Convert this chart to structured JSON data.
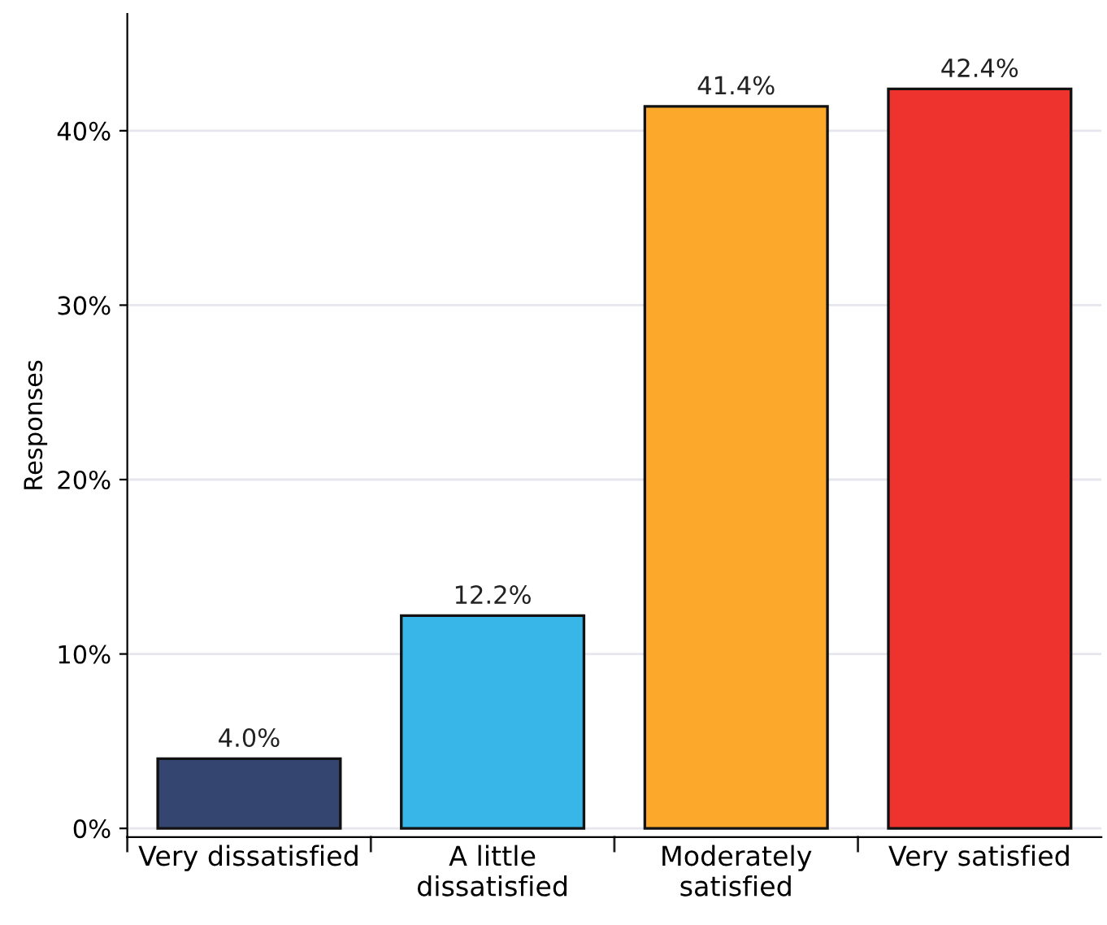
{
  "chart_data": {
    "type": "bar",
    "ylabel": "Responses",
    "categories": [
      "Very dissatisfied",
      "A little\ndissatisfied",
      "Moderately\nsatisfied",
      "Very satisfied"
    ],
    "values": [
      4.0,
      12.2,
      41.4,
      42.4
    ],
    "colors": [
      "#34466f",
      "#38b6e8",
      "#fca82b",
      "#ee332e"
    ],
    "value_labels": [
      "4.0%",
      "12.2%",
      "41.4%",
      "42.4%"
    ],
    "ylim": [
      -0.5,
      46.7
    ],
    "yticks": [
      {
        "value": 0,
        "label": "0%"
      },
      {
        "value": 10,
        "label": "10%"
      },
      {
        "value": 20,
        "label": "20%"
      },
      {
        "value": 30,
        "label": "30%"
      },
      {
        "value": 40,
        "label": "40%"
      }
    ],
    "grid": "y",
    "legend": false
  }
}
